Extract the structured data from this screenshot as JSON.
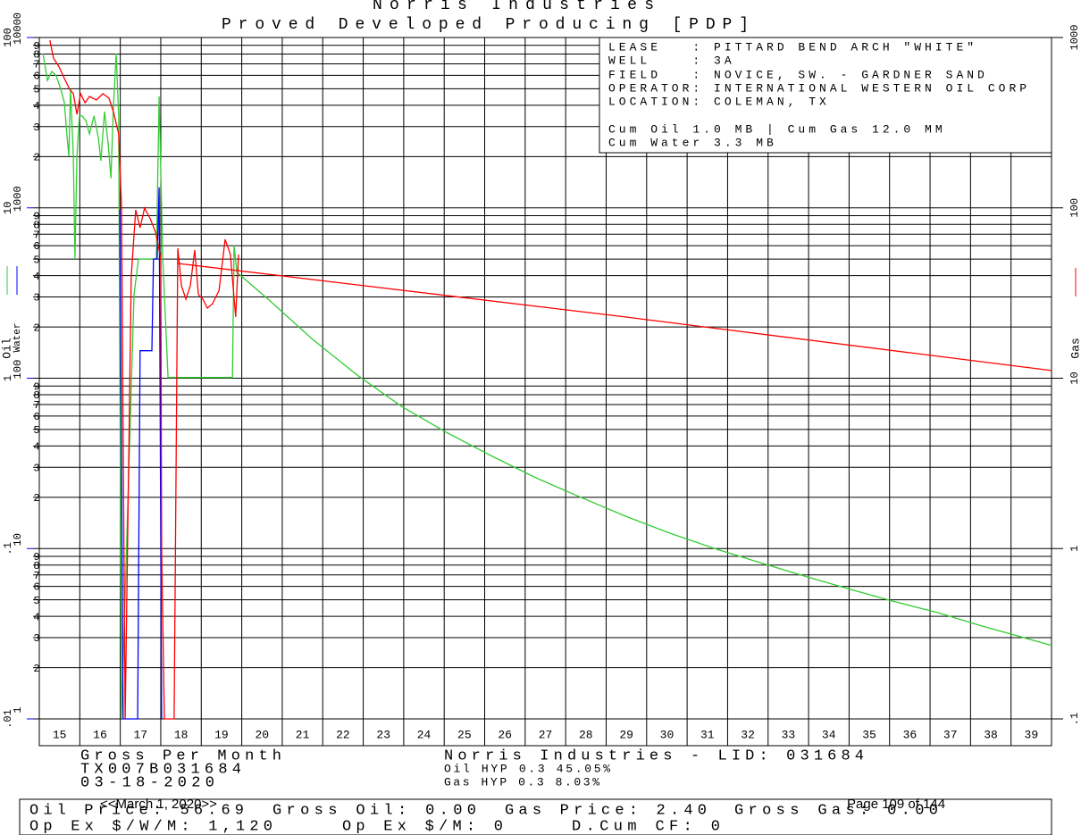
{
  "chart_data": {
    "type": "line",
    "title": "Norris Industries",
    "subtitle": "Proved Developed Producing [PDP]",
    "ylog": true,
    "grid": true,
    "xlim": [
      15,
      40
    ],
    "xticks": [
      15,
      16,
      17,
      18,
      19,
      20,
      21,
      22,
      23,
      24,
      25,
      26,
      27,
      28,
      29,
      30,
      31,
      32,
      33,
      34,
      35,
      36,
      37,
      38,
      39
    ],
    "ylim": [
      0.01,
      100
    ],
    "yticks": [
      100,
      10,
      1,
      {
        "value": 0.1,
        "label": ".1"
      },
      {
        "value": 0.01,
        "label": ".01"
      }
    ],
    "yminorticks": [
      {
        "value": 0.02,
        "label": "2"
      },
      {
        "value": 0.03,
        "label": "3"
      },
      {
        "value": 0.04,
        "label": "4"
      },
      {
        "value": 0.05,
        "label": "5"
      },
      {
        "value": 0.06,
        "label": "6"
      },
      {
        "value": 0.07,
        "label": "7"
      },
      {
        "value": 0.08,
        "label": "8"
      },
      {
        "value": 0.09,
        "label": "9"
      },
      {
        "value": 0.2,
        "label": "2"
      },
      {
        "value": 0.3,
        "label": "3"
      },
      {
        "value": 0.4,
        "label": "4"
      },
      {
        "value": 0.5,
        "label": "5"
      },
      {
        "value": 0.6,
        "label": "6"
      },
      {
        "value": 0.7,
        "label": "7"
      },
      {
        "value": 0.8,
        "label": "8"
      },
      {
        "value": 0.9,
        "label": "9"
      },
      2,
      3,
      4,
      5,
      6,
      7,
      8,
      9,
      {
        "value": 20,
        "label": "2"
      },
      {
        "value": 30,
        "label": "3"
      },
      {
        "value": 40,
        "label": "4"
      },
      {
        "value": 50,
        "label": "5"
      },
      {
        "value": 60,
        "label": "6"
      },
      {
        "value": 70,
        "label": "7"
      },
      {
        "value": 80,
        "label": "8"
      },
      {
        "value": 90,
        "label": "9"
      }
    ],
    "y2lim": [
      0.1,
      1000
    ],
    "y2ticks": [
      1000,
      100,
      10,
      1,
      {
        "value": 0.1,
        "label": ".1"
      }
    ],
    "y3lim": [
      1,
      10000
    ],
    "y3ticks": [
      10000,
      1000,
      100,
      10,
      1
    ],
    "series": [
      {
        "name": "Oil",
        "color": "#33cc33",
        "axis": "y",
        "x": [
          15.09,
          15.2,
          15.31,
          15.42,
          15.53,
          15.62,
          15.68,
          15.73,
          15.77,
          15.84,
          15.88,
          15.93,
          15.99,
          16.06,
          16.15,
          16.24,
          16.35,
          16.46,
          16.52,
          16.61,
          16.7,
          16.77,
          16.83,
          16.9,
          16.96,
          17.03,
          17.34,
          17.45,
          17.56,
          17.89,
          17.96,
          18.05,
          18.18,
          19.77,
          19.81,
          19.88,
          20.65,
          21.75,
          22.86,
          23.96,
          25.06,
          26.17,
          27.27,
          28.37,
          29.47,
          30.58,
          31.68,
          32.78,
          33.89,
          34.99,
          36.09,
          37.2,
          38.3,
          40
        ],
        "values": [
          80.5,
          56,
          63.2,
          59.5,
          49.7,
          41.4,
          27.2,
          20.1,
          49.7,
          20.1,
          5.01,
          20.1,
          34.6,
          34.6,
          32.5,
          27.2,
          34.6,
          25.6,
          18.9,
          36.7,
          24.1,
          14.9,
          39,
          80.5,
          34.6,
          0.01,
          3.09,
          5.01,
          5.01,
          5.01,
          45.1,
          5.01,
          1.01,
          1.01,
          6,
          4.18,
          2.91,
          1.69,
          1.04,
          0.68,
          0.48,
          0.35,
          0.26,
          0.2,
          0.155,
          0.123,
          0.1,
          0.083,
          0.069,
          0.058,
          0.049,
          0.042,
          0.035,
          0.027
        ]
      },
      {
        "name": "Water",
        "color": "#0000ff",
        "axis": "y3",
        "x": [
          16.99,
          17.07,
          17.43,
          17.49,
          17.78,
          17.82,
          17.91,
          17.96,
          18.02
        ],
        "values": [
          973,
          1,
          1,
          145,
          145,
          501,
          501,
          1320,
          1
        ]
      },
      {
        "name": "Gas",
        "color": "#ff0000",
        "axis": "y2",
        "x": [
          15.26,
          15.35,
          15.49,
          15.62,
          15.75,
          15.84,
          15.93,
          16.02,
          16.13,
          16.24,
          16.41,
          16.57,
          16.72,
          16.83,
          16.96,
          17.03,
          17.12,
          17.27,
          17.38,
          17.49,
          17.6,
          17.74,
          17.87,
          18.0,
          18.02,
          18.09,
          18.33,
          18.42,
          18.51,
          18.62,
          18.73,
          18.84,
          18.93,
          19.04,
          19.15,
          19.28,
          19.44,
          19.59,
          19.72,
          19.85,
          19.92
        ],
        "values": [
          964,
          757,
          671,
          574,
          497,
          468,
          354,
          468,
          414,
          451,
          430,
          468,
          440,
          367,
          272,
          103,
          0.1,
          39.4,
          97.3,
          76.4,
          99.8,
          86.3,
          72,
          50.1,
          0.99,
          0.1,
          0.1,
          57.9,
          34.9,
          29.1,
          34.9,
          56.5,
          30.9,
          29.1,
          25.8,
          27.4,
          32.8,
          65.3,
          53.2,
          22.9,
          53.2
        ]
      },
      {
        "color": "#ff0000",
        "axis": "y2",
        "x": [
          18.4,
          29.47,
          40
        ],
        "values": [
          47.2,
          22.9,
          11.1
        ]
      }
    ],
    "info_box": [
      "LEASE   : PITTARD BEND ARCH \"WHITE\"",
      "WELL    : 3A",
      "FIELD   : NOVICE, SW. - GARDNER SAND",
      "OPERATOR: INTERNATIONAL WESTERN OIL CORP",
      "LOCATION: COLEMAN, TX",
      "Cum Oil 1.0 MB | Cum Gas 12.0 MM",
      "Cum Water 3.3 MB"
    ],
    "footer": {
      "left": [
        "Gross Per Month",
        "TX007B031684",
        "03-18-2020"
      ],
      "company": "Norris Industries - LID: 031684",
      "oil_forecast": "Oil HYP 0.3 45.05%",
      "gas_forecast": "Gas HYP 0.3 8.03%",
      "oil_price": "Oil Price: 56.69",
      "gross_oil": "Gross Oil: 0.00",
      "gas_price": "Gas Price: 2.40",
      "gross_gas": "Gross Gas: 0.00",
      "opex_well": "Op Ex $/W/M: 1,120",
      "opex": "Op Ex $/M: 0",
      "dcum": "D.Cum CF: 0",
      "date": "<<March 1, 2020>>",
      "page": "Page 109 of 144"
    }
  }
}
